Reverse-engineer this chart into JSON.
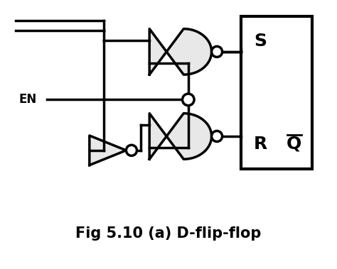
{
  "title": "Fig 5.10 (a) D-flip-flop",
  "bg_color": "#ffffff",
  "line_color": "#000000",
  "gate_fill": "#e8e8e8",
  "lw": 2.5,
  "title_fontsize": 15,
  "label_EN": "EN",
  "label_S": "S",
  "label_R": "R",
  "label_Qbar": "Q",
  "bubble_r": 0.016,
  "dot_r": 0.01
}
